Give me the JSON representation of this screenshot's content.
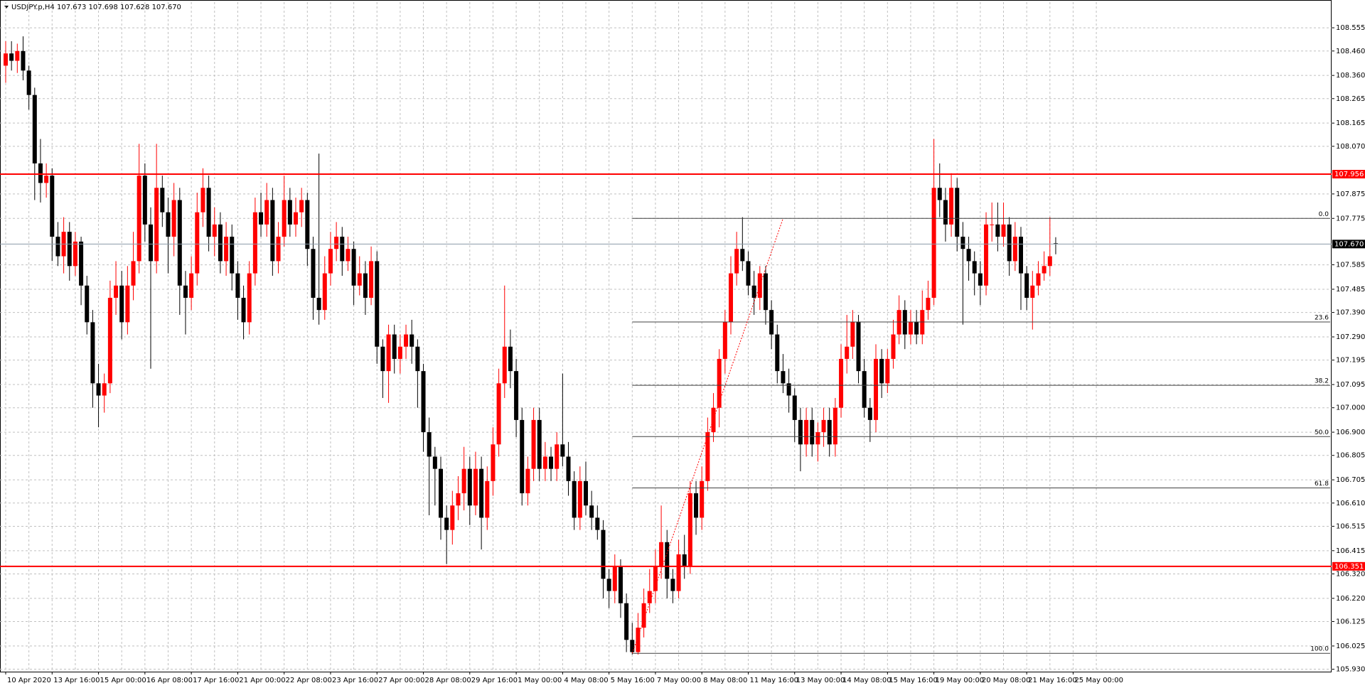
{
  "chart_data": {
    "type": "candlestick",
    "title": "USDJPY.p,H4  107.673 107.698 107.628 107.670",
    "up_color": "#ff0000",
    "down_color": "#000000",
    "grid": true,
    "ylim": [
      105.92,
      108.66
    ],
    "yticks": [
      108.555,
      {
        "value": 108.46,
        "label": "108.460"
      },
      {
        "value": 108.36,
        "label": "108.360"
      },
      108.265,
      108.165,
      {
        "value": 108.07,
        "label": "108.070"
      },
      107.875,
      107.775,
      107.585,
      107.485,
      {
        "value": 107.39,
        "label": "107.390"
      },
      {
        "value": 107.29,
        "label": "107.290"
      },
      107.195,
      107.095,
      {
        "value": 107,
        "label": "107.000"
      },
      {
        "value": 106.9,
        "label": "106.900"
      },
      106.805,
      106.705,
      {
        "value": 106.61,
        "label": "106.610"
      },
      106.515,
      106.415,
      {
        "value": 106.32,
        "label": "106.320"
      },
      {
        "value": 106.22,
        "label": "106.220"
      },
      106.125,
      106.025,
      {
        "value": 105.93,
        "label": "105.930"
      }
    ],
    "x_labels": [
      "10 Apr 2020",
      "13 Apr 16:00",
      "15 Apr 00:00",
      "16 Apr 08:00",
      "17 Apr 16:00",
      "21 Apr 00:00",
      "22 Apr 08:00",
      "23 Apr 16:00",
      "27 Apr 00:00",
      "28 Apr 08:00",
      "29 Apr 16:00",
      "1 May 00:00",
      "4 May 08:00",
      "5 May 16:00",
      "7 May 00:00",
      "8 May 08:00",
      "11 May 16:00",
      "13 May 00:00",
      "14 May 08:00",
      "15 May 16:00",
      "19 May 00:00",
      "20 May 08:00",
      "21 May 16:00",
      "25 May 00:00"
    ],
    "hlines": [
      {
        "value": 107.956,
        "label": "107.956",
        "color": "#ff0000"
      },
      {
        "value": 107.67,
        "label": "107.670",
        "color": "#8a9aa8",
        "label_color": "#000000"
      },
      {
        "value": 106.351,
        "label": "106.351",
        "color": "#ff0000"
      }
    ],
    "fibonacci": {
      "from_candle": 108,
      "color": "#404040",
      "levels": [
        {
          "level": {
            "value": 0,
            "label": "0.0"
          },
          "price": 107.775
        },
        {
          "level": 23.6,
          "price": 107.351
        },
        {
          "level": 38.2,
          "price": 107.092
        },
        {
          "level": {
            "value": 50,
            "label": "50.0"
          },
          "price": 106.882
        },
        {
          "level": 61.8,
          "price": 106.672
        },
        {
          "level": {
            "value": 100,
            "label": "100.0"
          },
          "price": 105.995
        }
      ]
    },
    "trendline": {
      "color": "#ff0000",
      "x": [
        108,
        134
      ],
      "y": [
        105.995,
        107.775
      ]
    },
    "candles": [
      [
        108.4,
        108.5,
        108.33,
        108.45
      ],
      [
        108.45,
        108.5,
        108.38,
        108.42
      ],
      [
        108.42,
        108.49,
        108.37,
        108.46
      ],
      [
        108.46,
        108.52,
        108.34,
        108.38
      ],
      [
        108.38,
        108.4,
        108.22,
        108.28
      ],
      [
        108.28,
        108.31,
        107.85,
        108.0
      ],
      [
        108.0,
        108.1,
        107.84,
        107.92
      ],
      [
        107.92,
        108.0,
        107.86,
        107.95
      ],
      [
        107.95,
        107.98,
        107.6,
        107.7
      ],
      [
        107.7,
        107.76,
        107.58,
        107.62
      ],
      [
        107.62,
        107.78,
        107.55,
        107.72
      ],
      [
        107.72,
        107.76,
        107.52,
        107.58
      ],
      [
        107.58,
        107.72,
        107.54,
        107.68
      ],
      [
        107.68,
        107.7,
        107.42,
        107.5
      ],
      [
        107.5,
        107.54,
        107.3,
        107.35
      ],
      [
        107.35,
        107.4,
        107.0,
        107.1
      ],
      [
        107.1,
        107.18,
        106.92,
        107.05
      ],
      [
        107.05,
        107.14,
        106.98,
        107.1
      ],
      [
        107.1,
        107.52,
        107.06,
        107.45
      ],
      [
        107.45,
        107.6,
        107.38,
        107.5
      ],
      [
        107.5,
        107.56,
        107.28,
        107.35
      ],
      [
        107.35,
        107.58,
        107.3,
        107.5
      ],
      [
        107.5,
        107.72,
        107.44,
        107.6
      ],
      [
        107.6,
        108.08,
        107.55,
        107.95
      ],
      [
        107.95,
        108.0,
        107.68,
        107.75
      ],
      [
        107.75,
        107.82,
        107.16,
        107.6
      ],
      [
        107.6,
        108.08,
        107.55,
        107.9
      ],
      [
        107.9,
        107.95,
        107.74,
        107.8
      ],
      [
        107.8,
        107.86,
        107.55,
        107.7
      ],
      [
        107.7,
        107.92,
        107.62,
        107.85
      ],
      [
        107.85,
        107.9,
        107.38,
        107.5
      ],
      [
        107.5,
        107.56,
        107.3,
        107.45
      ],
      [
        107.45,
        107.62,
        107.4,
        107.55
      ],
      [
        107.55,
        107.88,
        107.5,
        107.8
      ],
      [
        107.8,
        107.98,
        107.74,
        107.9
      ],
      [
        107.9,
        107.95,
        107.64,
        107.7
      ],
      [
        107.7,
        107.82,
        107.62,
        107.75
      ],
      [
        107.75,
        107.8,
        107.55,
        107.6
      ],
      [
        107.6,
        107.76,
        107.54,
        107.7
      ],
      [
        107.7,
        107.75,
        107.48,
        107.55
      ],
      [
        107.55,
        107.6,
        107.36,
        107.45
      ],
      [
        107.45,
        107.5,
        107.28,
        107.35
      ],
      [
        107.35,
        107.6,
        107.3,
        107.55
      ],
      [
        107.55,
        107.86,
        107.5,
        107.8
      ],
      [
        107.8,
        107.88,
        107.7,
        107.75
      ],
      [
        107.75,
        107.92,
        107.7,
        107.85
      ],
      [
        107.85,
        107.9,
        107.54,
        107.6
      ],
      [
        107.6,
        107.76,
        107.55,
        107.7
      ],
      [
        107.7,
        107.95,
        107.66,
        107.85
      ],
      [
        107.85,
        107.9,
        107.7,
        107.75
      ],
      [
        107.75,
        107.86,
        107.7,
        107.8
      ],
      [
        107.8,
        107.9,
        107.74,
        107.85
      ],
      [
        107.85,
        107.88,
        107.58,
        107.65
      ],
      [
        107.65,
        107.7,
        107.36,
        107.45
      ],
      [
        107.45,
        108.04,
        107.34,
        107.4
      ],
      [
        107.4,
        107.62,
        107.36,
        107.55
      ],
      [
        107.55,
        107.72,
        107.5,
        107.65
      ],
      [
        107.65,
        107.76,
        107.6,
        107.7
      ],
      [
        107.7,
        107.74,
        107.54,
        107.6
      ],
      [
        107.6,
        107.7,
        107.56,
        107.65
      ],
      [
        107.65,
        107.68,
        107.42,
        107.5
      ],
      [
        107.5,
        107.62,
        107.46,
        107.55
      ],
      [
        107.55,
        107.6,
        107.38,
        107.45
      ],
      [
        107.45,
        107.66,
        107.42,
        107.6
      ],
      [
        107.6,
        107.64,
        107.18,
        107.25
      ],
      [
        107.25,
        107.28,
        107.04,
        107.15
      ],
      [
        107.15,
        107.34,
        107.02,
        107.3
      ],
      [
        107.3,
        107.34,
        107.14,
        107.2
      ],
      [
        107.2,
        107.3,
        107.14,
        107.25
      ],
      [
        107.25,
        107.34,
        107.2,
        107.3
      ],
      [
        107.3,
        107.36,
        107.18,
        107.25
      ],
      [
        107.25,
        107.28,
        107.0,
        107.15
      ],
      [
        107.15,
        107.18,
        106.82,
        106.9
      ],
      [
        106.9,
        106.96,
        106.56,
        106.8
      ],
      [
        106.8,
        106.84,
        106.6,
        106.75
      ],
      [
        106.75,
        106.8,
        106.46,
        106.55
      ],
      [
        106.55,
        106.6,
        106.36,
        106.5
      ],
      [
        106.5,
        106.66,
        106.44,
        106.6
      ],
      [
        106.6,
        106.72,
        106.54,
        106.65
      ],
      [
        106.65,
        106.84,
        106.58,
        106.75
      ],
      [
        106.75,
        106.8,
        106.52,
        106.6
      ],
      [
        106.6,
        106.82,
        106.56,
        106.75
      ],
      [
        106.75,
        106.8,
        106.42,
        106.55
      ],
      [
        106.55,
        106.76,
        106.5,
        106.7
      ],
      [
        106.7,
        106.92,
        106.64,
        106.85
      ],
      [
        106.85,
        107.16,
        106.8,
        107.1
      ],
      [
        107.1,
        107.5,
        107.04,
        107.25
      ],
      [
        107.25,
        107.32,
        107.08,
        107.15
      ],
      [
        107.15,
        107.2,
        106.88,
        106.95
      ],
      [
        106.95,
        107.0,
        106.6,
        106.65
      ],
      [
        106.65,
        106.8,
        106.6,
        106.75
      ],
      [
        106.75,
        107.0,
        106.7,
        106.95
      ],
      [
        106.95,
        107.0,
        106.7,
        106.75
      ],
      [
        106.75,
        106.86,
        106.7,
        106.8
      ],
      [
        106.8,
        106.84,
        106.7,
        106.75
      ],
      [
        106.75,
        106.9,
        106.7,
        106.85
      ],
      [
        106.85,
        107.14,
        106.76,
        106.8
      ],
      [
        106.8,
        106.86,
        106.64,
        106.7
      ],
      [
        106.7,
        106.74,
        106.5,
        106.55
      ],
      [
        106.55,
        106.76,
        106.5,
        106.7
      ],
      [
        106.7,
        106.78,
        106.56,
        106.6
      ],
      [
        106.6,
        106.66,
        106.5,
        106.55
      ],
      [
        106.55,
        106.6,
        106.46,
        106.5
      ],
      [
        106.5,
        106.54,
        106.22,
        106.3
      ],
      [
        106.3,
        106.34,
        106.18,
        106.25
      ],
      [
        106.25,
        106.4,
        106.2,
        106.35
      ],
      [
        106.35,
        106.38,
        106.14,
        106.2
      ],
      [
        106.2,
        106.24,
        106.0,
        106.05
      ],
      [
        106.05,
        106.12,
        105.99,
        106.0
      ],
      [
        106.0,
        106.16,
        105.99,
        106.1
      ],
      [
        106.1,
        106.26,
        106.06,
        106.2
      ],
      [
        106.2,
        106.34,
        106.16,
        106.25
      ],
      [
        106.25,
        106.42,
        106.2,
        106.35
      ],
      [
        106.35,
        106.6,
        106.3,
        106.45
      ],
      [
        106.45,
        106.5,
        106.22,
        106.3
      ],
      [
        106.3,
        106.34,
        106.2,
        106.25
      ],
      [
        106.25,
        106.46,
        106.22,
        106.4
      ],
      [
        106.4,
        106.48,
        106.3,
        106.35
      ],
      [
        106.35,
        106.7,
        106.32,
        106.65
      ],
      [
        106.65,
        106.7,
        106.48,
        106.55
      ],
      [
        106.55,
        106.76,
        106.5,
        106.7
      ],
      [
        106.7,
        106.96,
        106.66,
        106.9
      ],
      [
        106.9,
        107.06,
        106.86,
        107.0
      ],
      [
        107.0,
        107.24,
        106.92,
        107.2
      ],
      [
        107.2,
        107.4,
        107.14,
        107.35
      ],
      [
        107.35,
        107.62,
        107.3,
        107.55
      ],
      [
        107.55,
        107.72,
        107.5,
        107.65
      ],
      [
        107.65,
        107.78,
        107.56,
        107.6
      ],
      [
        107.6,
        107.64,
        107.46,
        107.5
      ],
      [
        107.5,
        107.56,
        107.38,
        107.45
      ],
      [
        107.45,
        107.58,
        107.4,
        107.55
      ],
      [
        107.55,
        107.58,
        107.34,
        107.4
      ],
      [
        107.4,
        107.44,
        107.24,
        107.3
      ],
      [
        107.3,
        107.34,
        107.1,
        107.15
      ],
      [
        107.15,
        107.22,
        107.06,
        107.1
      ],
      [
        107.1,
        107.16,
        106.98,
        107.05
      ],
      [
        107.05,
        107.08,
        106.86,
        106.95
      ],
      [
        106.95,
        107.0,
        106.74,
        106.85
      ],
      [
        106.85,
        107.0,
        106.8,
        106.95
      ],
      [
        106.95,
        107.0,
        106.8,
        106.85
      ],
      [
        106.85,
        106.94,
        106.78,
        106.9
      ],
      [
        106.9,
        107.0,
        106.84,
        106.95
      ],
      [
        106.95,
        107.0,
        106.8,
        106.85
      ],
      [
        106.85,
        107.04,
        106.8,
        107.0
      ],
      [
        107.0,
        107.26,
        106.96,
        107.2
      ],
      [
        107.2,
        107.38,
        107.14,
        107.25
      ],
      [
        107.25,
        107.4,
        107.2,
        107.35
      ],
      [
        107.35,
        107.38,
        107.1,
        107.15
      ],
      [
        107.15,
        107.2,
        106.96,
        107.0
      ],
      [
        107.0,
        107.04,
        106.86,
        106.95
      ],
      [
        106.95,
        107.26,
        106.9,
        107.2
      ],
      [
        107.2,
        107.24,
        107.04,
        107.1
      ],
      [
        107.1,
        107.24,
        107.06,
        107.2
      ],
      [
        107.2,
        107.36,
        107.16,
        107.3
      ],
      [
        107.3,
        107.46,
        107.26,
        107.4
      ],
      [
        107.4,
        107.44,
        107.24,
        107.3
      ],
      [
        107.3,
        107.4,
        107.26,
        107.35
      ],
      [
        107.35,
        107.4,
        107.26,
        107.3
      ],
      [
        107.3,
        107.48,
        107.26,
        107.4
      ],
      [
        107.4,
        107.52,
        107.36,
        107.45
      ],
      [
        107.45,
        108.1,
        107.42,
        107.9
      ],
      [
        107.9,
        108.0,
        107.78,
        107.85
      ],
      [
        107.85,
        107.9,
        107.68,
        107.75
      ],
      [
        107.75,
        107.96,
        107.7,
        107.9
      ],
      [
        107.9,
        107.94,
        107.64,
        107.7
      ],
      [
        107.7,
        107.76,
        107.34,
        107.65
      ],
      [
        107.65,
        107.7,
        107.52,
        107.6
      ],
      [
        107.6,
        107.64,
        107.46,
        107.55
      ],
      [
        107.55,
        107.6,
        107.42,
        107.5
      ],
      [
        107.5,
        107.8,
        107.46,
        107.75
      ],
      [
        107.75,
        107.84,
        107.68,
        107.75
      ],
      [
        107.75,
        107.84,
        107.64,
        107.7
      ],
      [
        107.7,
        107.84,
        107.66,
        107.75
      ],
      [
        107.75,
        107.78,
        107.54,
        107.6
      ],
      [
        107.6,
        107.76,
        107.56,
        107.7
      ],
      [
        107.7,
        107.74,
        107.4,
        107.55
      ],
      [
        107.55,
        107.58,
        107.4,
        107.45
      ],
      [
        107.45,
        107.56,
        107.32,
        107.5
      ],
      [
        107.5,
        107.6,
        107.46,
        107.55
      ],
      [
        107.55,
        107.64,
        107.52,
        107.58
      ],
      [
        107.58,
        107.78,
        107.54,
        107.62
      ],
      [
        107.673,
        107.698,
        107.628,
        107.67
      ]
    ]
  }
}
